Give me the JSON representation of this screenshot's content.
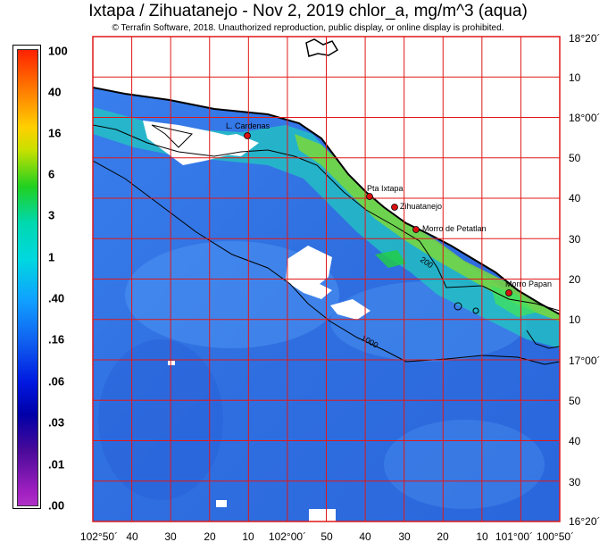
{
  "header": {
    "title": "Ixtapa / Zihuatanejo - Nov 2, 2019  chlor_a, mg/m^3 (aqua)",
    "notice": "© Terrafin Software,  2018.  Unauthorized reproduction, public display, or online display is prohibited."
  },
  "legend": {
    "labels": [
      "100",
      "40",
      "16",
      "6",
      "3",
      "1",
      ".40",
      ".16",
      ".06",
      ".03",
      ".01",
      ".00"
    ]
  },
  "axes": {
    "lat_labels": [
      "18°20´",
      "10",
      "18°00´",
      "50",
      "40",
      "30",
      "20",
      "10",
      "17°00´",
      "50",
      "40",
      "30",
      "16°20´"
    ],
    "lon_labels": [
      "102°50´",
      "40",
      "30",
      "20",
      "10",
      "102°00´",
      "50",
      "40",
      "30",
      "20",
      "10",
      "101°00´",
      "100°50´"
    ]
  },
  "places": {
    "l_cardenas": "L. Cardenas",
    "pta_ixtapa": "Pta Ixtapa",
    "zihuatanejo": "Zihuatanejo",
    "morro_petatlan": "Morro de Petatlan",
    "morro_papan": "Morro Papan"
  },
  "contours": {
    "c200": "200",
    "c1000": "1000"
  },
  "colors": {
    "ocean": "#2f6fe0",
    "grid": "#e01818",
    "land": "#ffffff",
    "marker": "#d81010"
  }
}
